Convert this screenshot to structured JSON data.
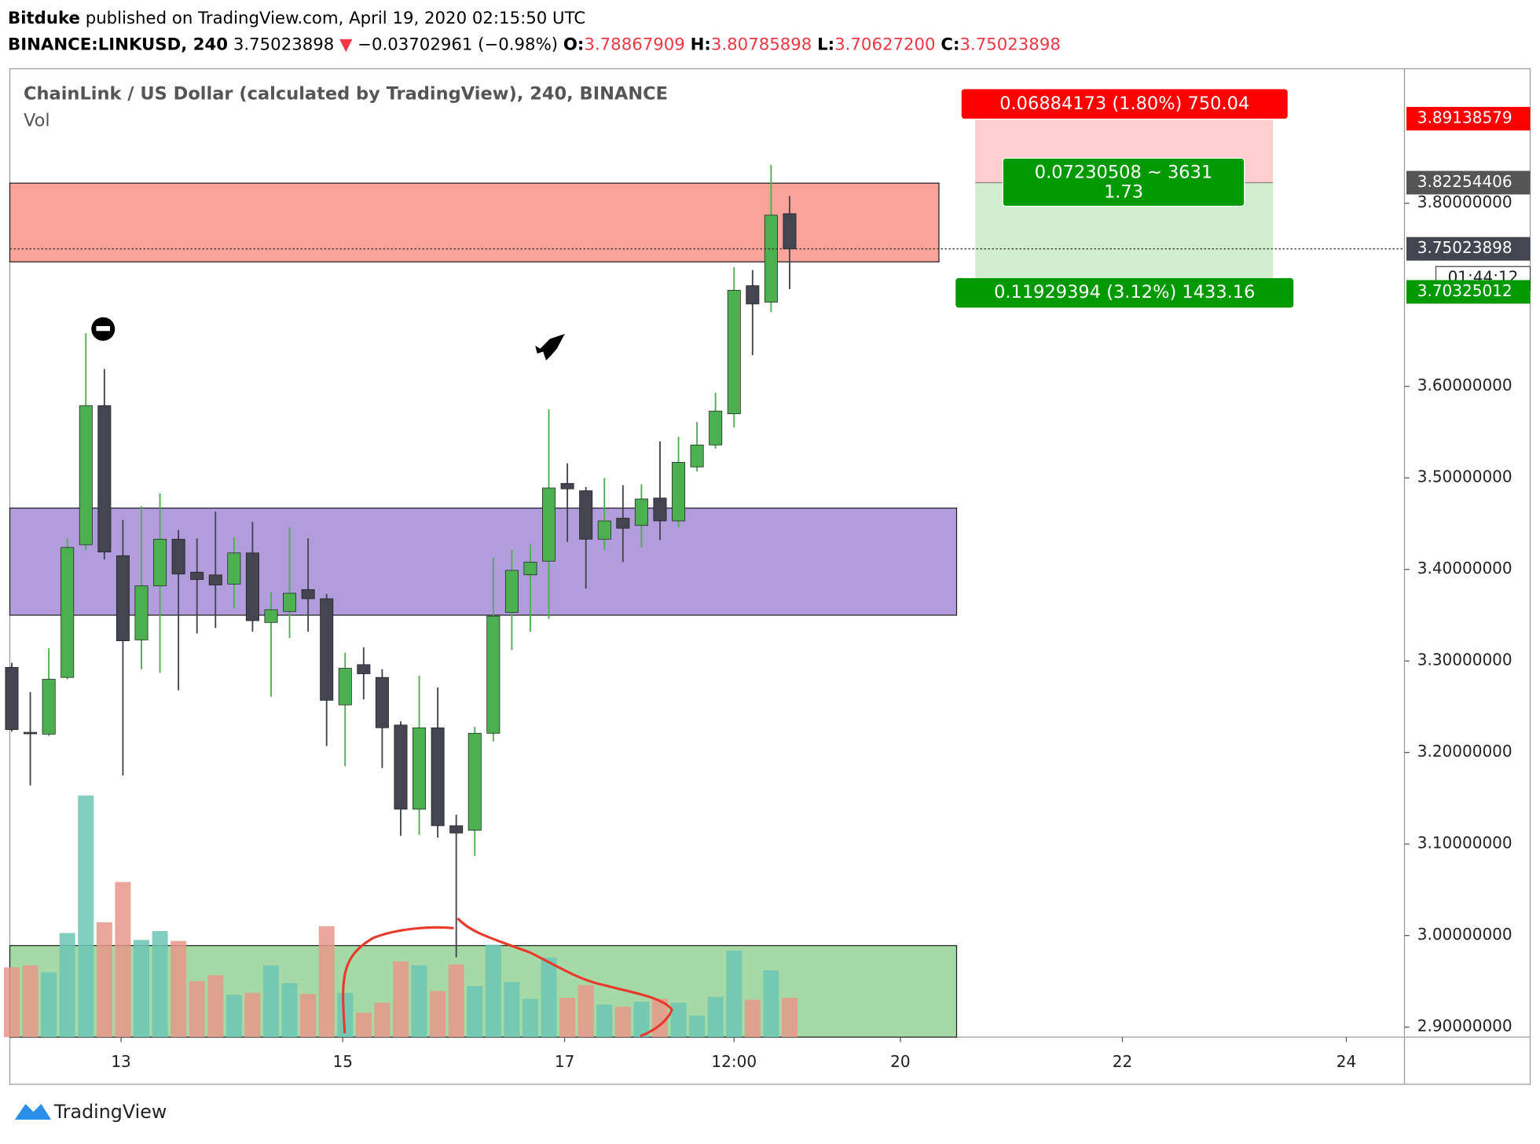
{
  "header": {
    "publisher": "Bitduke",
    "published": "published on TradingView.com, April 19, 2020 02:15:50 UTC",
    "symbol": "BINANCE:LINKUSD, 240",
    "last": "3.75023898",
    "arrow": "▼",
    "change": "−0.03702961 (−0.98%)",
    "o_label": "O:",
    "o": "3.78867909",
    "h_label": "H:",
    "h": "3.80785898",
    "l_label": "L:",
    "l": "3.70627200",
    "c_label": "C:",
    "c": "3.75023898"
  },
  "chart_data": {
    "type": "candlestick",
    "title": "ChainLink / US Dollar (calculated by TradingView), 240, BINANCE",
    "subtitle": "Vol",
    "open": [
      3.293,
      3.222,
      3.22,
      3.282,
      3.427,
      3.579,
      3.415,
      3.323,
      3.382,
      3.433,
      3.397,
      3.394,
      3.384,
      3.418,
      3.342,
      3.354,
      3.378,
      3.368,
      3.252,
      3.296,
      3.282,
      3.23,
      3.138,
      3.227,
      3.12,
      3.115,
      3.221,
      3.353,
      3.394,
      3.409,
      3.494,
      3.486,
      3.433,
      3.456,
      3.448,
      3.478,
      3.453,
      3.512,
      3.536,
      3.57,
      3.71,
      3.692,
      3.78867909
    ],
    "high": [
      3.298,
      3.266,
      3.314,
      3.434,
      3.658,
      3.619,
      3.454,
      3.469,
      3.483,
      3.443,
      3.434,
      3.463,
      3.435,
      3.452,
      3.375,
      3.446,
      3.434,
      3.373,
      3.309,
      3.315,
      3.291,
      3.234,
      3.284,
      3.271,
      3.132,
      3.228,
      3.413,
      3.421,
      3.427,
      3.575,
      3.516,
      3.49,
      3.5,
      3.492,
      3.493,
      3.54,
      3.545,
      3.561,
      3.593,
      3.73,
      3.727,
      3.842,
      3.80785898
    ],
    "low": [
      3.223,
      3.164,
      3.218,
      3.28,
      3.421,
      3.411,
      3.175,
      3.291,
      3.287,
      3.268,
      3.33,
      3.336,
      3.357,
      3.332,
      3.261,
      3.325,
      3.332,
      3.207,
      3.185,
      3.258,
      3.183,
      3.109,
      3.11,
      3.107,
      2.976,
      3.087,
      3.212,
      3.312,
      3.332,
      3.346,
      3.43,
      3.379,
      3.421,
      3.408,
      3.424,
      3.432,
      3.446,
      3.507,
      3.532,
      3.555,
      3.634,
      3.681,
      3.706272
    ],
    "close": [
      3.225,
      3.221,
      3.28,
      3.424,
      3.579,
      3.419,
      3.322,
      3.382,
      3.433,
      3.395,
      3.389,
      3.383,
      3.418,
      3.344,
      3.356,
      3.374,
      3.368,
      3.257,
      3.292,
      3.286,
      3.227,
      3.138,
      3.227,
      3.12,
      3.112,
      3.221,
      3.349,
      3.399,
      3.408,
      3.489,
      3.488,
      3.433,
      3.453,
      3.445,
      3.477,
      3.453,
      3.517,
      3.536,
      3.573,
      3.705,
      3.69,
      3.787,
      3.75023898
    ],
    "volume": [
      71,
      73,
      66,
      106,
      246,
      117,
      158,
      99,
      108,
      98,
      57,
      63,
      43,
      45,
      73,
      55,
      44,
      113,
      45,
      25,
      35,
      77,
      73,
      47,
      74,
      52,
      94,
      56,
      39,
      81,
      40,
      53,
      33,
      31,
      36,
      39,
      35,
      22,
      41,
      88,
      38,
      68,
      40
    ],
    "up_color": "#4caf50",
    "down_color": "#434651",
    "volume_up_color": "#6cc5b4",
    "volume_down_color": "#e8968a",
    "ylim": [
      2.889,
      3.947
    ],
    "yticks": [
      {
        "value": 2.9,
        "label": "2.90000000"
      },
      {
        "value": 3.0,
        "label": "3.00000000"
      },
      {
        "value": 3.1,
        "label": "3.10000000"
      },
      {
        "value": 3.2,
        "label": "3.20000000"
      },
      {
        "value": 3.3,
        "label": "3.30000000"
      },
      {
        "value": 3.4,
        "label": "3.40000000"
      },
      {
        "value": 3.5,
        "label": "3.50000000"
      },
      {
        "value": 3.6,
        "label": "3.60000000"
      },
      {
        "value": 3.8,
        "label": "3.80000000"
      }
    ],
    "xlim": [
      -0.106,
      75.2
    ],
    "xticks": [
      {
        "value": 5.9,
        "label": "13"
      },
      {
        "value": 17.87,
        "label": "15"
      },
      {
        "value": 29.85,
        "label": "17"
      },
      {
        "value": 39.0,
        "label": "12:00"
      },
      {
        "value": 47.98,
        "label": "20"
      },
      {
        "value": 59.97,
        "label": "22"
      },
      {
        "value": 72.06,
        "label": "24"
      }
    ],
    "zones": [
      {
        "top": 3.822,
        "bottom": 3.736,
        "color": "#f9a39b"
      },
      {
        "top": 3.467,
        "bottom": 3.35,
        "color": "#b29ddc"
      },
      {
        "top": 2.989,
        "bottom": 2.889,
        "color": "#a5d9a5"
      }
    ],
    "position": {
      "stop": 3.89138579,
      "entry": 3.82254406,
      "target": 3.70325012,
      "stop_label": "0.06884173 (1.80%) 750.04",
      "target_label": "0.11929394 (3.12%) 1433.16",
      "center_label": [
        "0.07230508 ~ 3631",
        "1.73"
      ]
    },
    "countdown": "01:44:12"
  },
  "footer": "TradingView"
}
